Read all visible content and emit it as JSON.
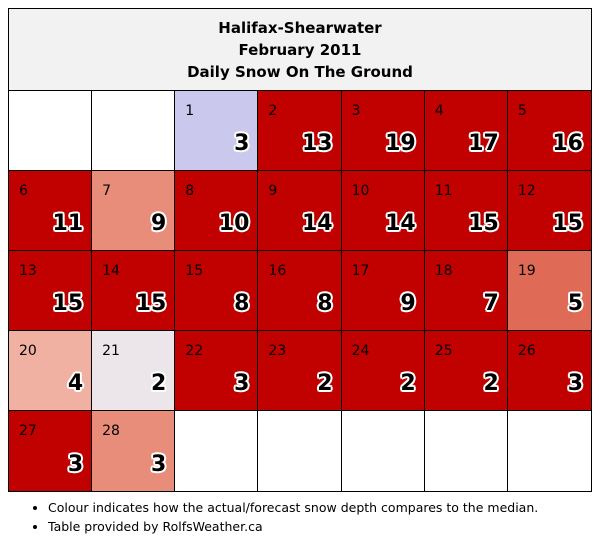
{
  "title": {
    "station": "Halifax-Shearwater",
    "month": "February 2011",
    "metric": "Daily Snow On The Ground"
  },
  "days": [
    {
      "day": "",
      "value": "",
      "color": "#ffffff"
    },
    {
      "day": "",
      "value": "",
      "color": "#ffffff"
    },
    {
      "day": "1",
      "value": "3",
      "color": "#cac8ec"
    },
    {
      "day": "2",
      "value": "13",
      "color": "#c10000"
    },
    {
      "day": "3",
      "value": "19",
      "color": "#c10000"
    },
    {
      "day": "4",
      "value": "17",
      "color": "#c10000"
    },
    {
      "day": "5",
      "value": "16",
      "color": "#c10000"
    },
    {
      "day": "6",
      "value": "11",
      "color": "#c10000"
    },
    {
      "day": "7",
      "value": "9",
      "color": "#e98d7b"
    },
    {
      "day": "8",
      "value": "10",
      "color": "#c10000"
    },
    {
      "day": "9",
      "value": "14",
      "color": "#c10000"
    },
    {
      "day": "10",
      "value": "14",
      "color": "#c10000"
    },
    {
      "day": "11",
      "value": "15",
      "color": "#c10000"
    },
    {
      "day": "12",
      "value": "15",
      "color": "#c10000"
    },
    {
      "day": "13",
      "value": "15",
      "color": "#c10000"
    },
    {
      "day": "14",
      "value": "15",
      "color": "#c10000"
    },
    {
      "day": "15",
      "value": "8",
      "color": "#c10000"
    },
    {
      "day": "16",
      "value": "8",
      "color": "#c10000"
    },
    {
      "day": "17",
      "value": "9",
      "color": "#c10000"
    },
    {
      "day": "18",
      "value": "7",
      "color": "#c10000"
    },
    {
      "day": "19",
      "value": "5",
      "color": "#df6a56"
    },
    {
      "day": "20",
      "value": "4",
      "color": "#f0b1a3"
    },
    {
      "day": "21",
      "value": "2",
      "color": "#ece6ea"
    },
    {
      "day": "22",
      "value": "3",
      "color": "#c10000"
    },
    {
      "day": "23",
      "value": "2",
      "color": "#c10000"
    },
    {
      "day": "24",
      "value": "2",
      "color": "#c10000"
    },
    {
      "day": "25",
      "value": "2",
      "color": "#c10000"
    },
    {
      "day": "26",
      "value": "3",
      "color": "#c10000"
    },
    {
      "day": "27",
      "value": "3",
      "color": "#c10000"
    },
    {
      "day": "28",
      "value": "3",
      "color": "#e98d7b"
    },
    {
      "day": "",
      "value": "",
      "color": "#ffffff"
    },
    {
      "day": "",
      "value": "",
      "color": "#ffffff"
    },
    {
      "day": "",
      "value": "",
      "color": "#ffffff"
    },
    {
      "day": "",
      "value": "",
      "color": "#ffffff"
    },
    {
      "day": "",
      "value": "",
      "color": "#ffffff"
    }
  ],
  "notes": [
    "Colour indicates how the actual/forecast snow depth compares to the median.",
    "Table provided by RolfsWeather.ca"
  ]
}
